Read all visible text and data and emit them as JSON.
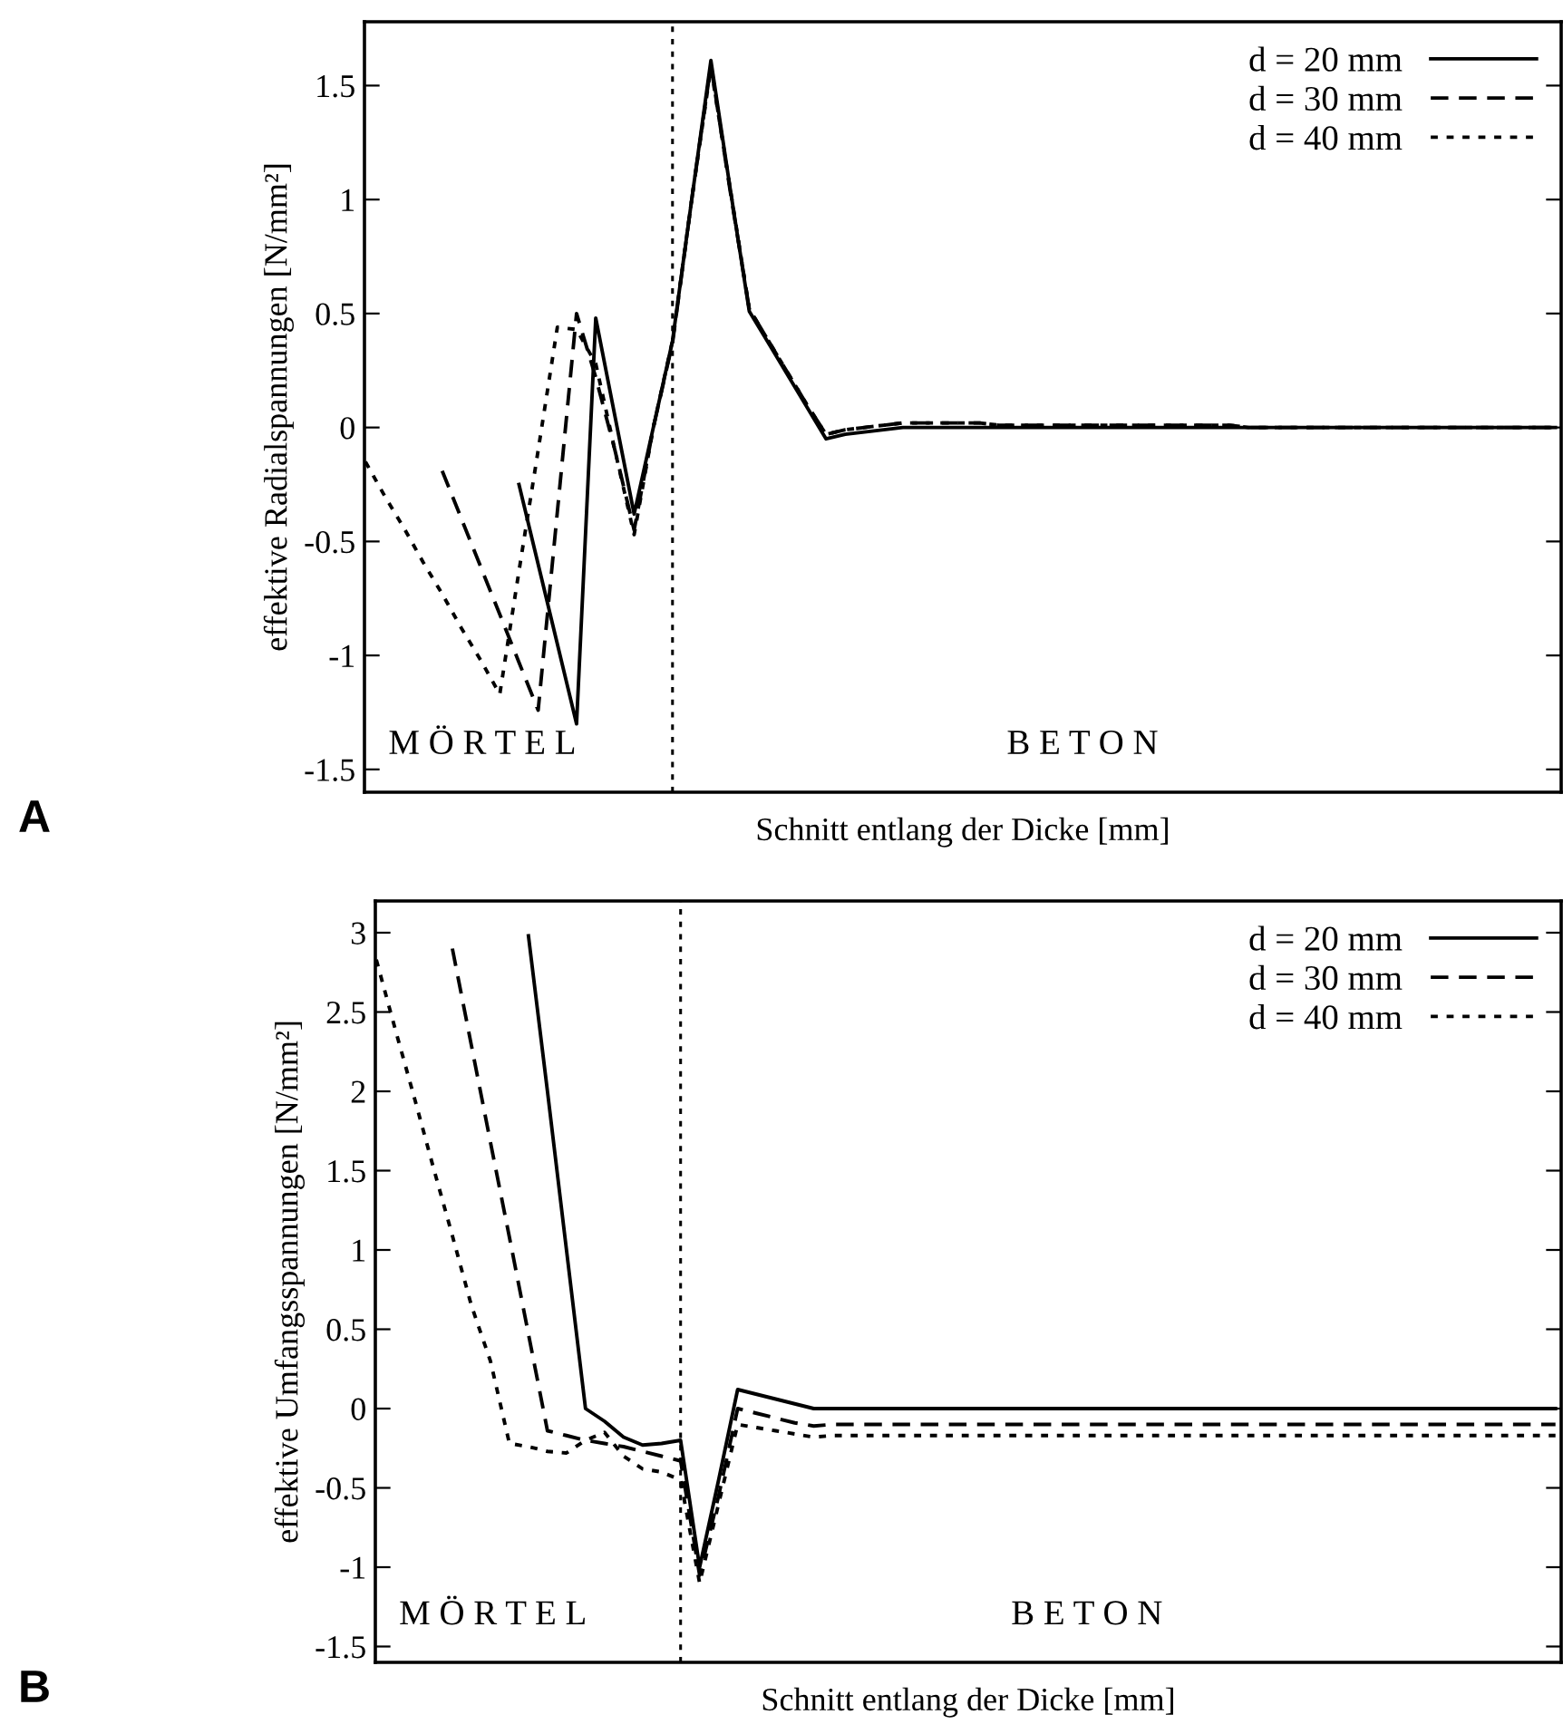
{
  "chart_data": [
    {
      "type": "line",
      "ylabel": "effektive Radialspannungen [N/mm²]",
      "xlabel": "Schnitt entlang der Dicke [mm]",
      "categories": [
        null,
        null,
        null,
        null,
        null,
        null,
        null,
        null,
        null,
        null,
        null,
        null,
        null,
        null,
        null,
        null,
        null,
        null,
        null,
        null,
        null,
        null,
        null,
        null,
        null,
        null,
        null,
        null,
        null,
        null,
        null,
        null,
        null,
        null,
        null,
        null,
        null,
        null,
        null,
        null,
        null,
        null,
        null,
        null,
        null,
        null,
        null,
        null,
        null,
        null,
        null,
        null,
        null,
        null,
        null,
        null,
        null,
        null,
        null,
        null,
        null,
        null,
        null
      ],
      "ylim": [
        -1.6,
        1.78
      ],
      "yticks": [
        -1.5,
        -1,
        -0.5,
        0,
        0.5,
        1,
        1.5
      ],
      "tick_labels": "y",
      "grid": false,
      "legend": "top right",
      "marker": "none",
      "series": [
        {
          "name": "d = 20 mm",
          "color": "#000000",
          "line_style": "solid",
          "values": [
            null,
            null,
            null,
            null,
            null,
            null,
            null,
            null,
            -0.25,
            -0.6,
            -0.95,
            -1.3,
            0.48,
            0.05,
            -0.38,
            0.0,
            0.38,
            1.0,
            1.61,
            1.05,
            0.51,
            0.37,
            0.23,
            0.09,
            -0.05,
            -0.03,
            -0.02,
            -0.01,
            0,
            0,
            0,
            0,
            0,
            0,
            0,
            0,
            0,
            0,
            0,
            0,
            0,
            0,
            0,
            0,
            0,
            0,
            0,
            0,
            0,
            0,
            0,
            0,
            0,
            0,
            0,
            0,
            0,
            0,
            0,
            0,
            0,
            0,
            0
          ]
        },
        {
          "name": "d = 30 mm",
          "color": "#000000",
          "line_style": "dashed",
          "values": [
            null,
            null,
            null,
            null,
            -0.19,
            -0.4,
            -0.61,
            -0.82,
            -1.03,
            -1.24,
            -0.37,
            0.5,
            0.22,
            -0.1,
            -0.45,
            0.0,
            0.37,
            1.0,
            1.59,
            1.04,
            0.52,
            0.38,
            0.24,
            0.1,
            -0.03,
            -0.01,
            0.0,
            0.01,
            0.02,
            0.02,
            0.02,
            0.02,
            0.02,
            0.01,
            0.01,
            0.01,
            0.01,
            0.01,
            0.01,
            0.01,
            0.01,
            0.01,
            0.01,
            0.01,
            0.01,
            0.01,
            0,
            0,
            0,
            0,
            0,
            0,
            0,
            0,
            0,
            0,
            0,
            0,
            0,
            0,
            0,
            0,
            0
          ]
        },
        {
          "name": "d = 40 mm",
          "color": "#000000",
          "line_style": "dotted",
          "values": [
            -0.15,
            -0.3,
            -0.44,
            -0.59,
            -0.73,
            -0.88,
            -1.02,
            -1.17,
            -0.63,
            -0.1,
            0.44,
            0.43,
            0.28,
            -0.1,
            -0.47,
            0.0,
            0.38,
            1.0,
            1.58,
            1.05,
            0.52,
            0.38,
            0.24,
            0.1,
            -0.03,
            -0.01,
            0.0,
            0.01,
            0.02,
            0.02,
            0.02,
            0.02,
            0.02,
            0.01,
            0.01,
            0.01,
            0.01,
            0.01,
            0.01,
            0.01,
            0.01,
            0.01,
            0.01,
            0.01,
            0.01,
            0.01,
            0,
            0,
            0,
            0,
            0,
            0,
            0,
            0,
            0,
            0,
            0,
            0,
            0,
            0,
            0,
            0,
            0
          ]
        }
      ],
      "annotations": [
        "M Ö R T E L",
        "B E T O N",
        "A"
      ]
    },
    {
      "type": "line",
      "ylabel": "effektive Umfangsspannungen [N/mm²]",
      "xlabel": "Schnitt entlang der Dicke [mm]",
      "categories": [
        null,
        null,
        null,
        null,
        null,
        null,
        null,
        null,
        null,
        null,
        null,
        null,
        null,
        null,
        null,
        null,
        null,
        null,
        null,
        null,
        null,
        null,
        null,
        null,
        null,
        null,
        null,
        null,
        null,
        null,
        null,
        null,
        null,
        null,
        null,
        null,
        null,
        null,
        null,
        null,
        null,
        null,
        null,
        null,
        null,
        null,
        null,
        null,
        null,
        null,
        null,
        null,
        null,
        null,
        null,
        null,
        null,
        null,
        null,
        null,
        null,
        null,
        null
      ],
      "ylim": [
        -1.6,
        3.2
      ],
      "yticks": [
        -1.5,
        -1,
        -0.5,
        0,
        0.5,
        1,
        1.5,
        2,
        2.5,
        3
      ],
      "tick_labels": "y",
      "grid": false,
      "legend": "top right",
      "marker": "none",
      "series": [
        {
          "name": "d = 20 mm",
          "color": "#000000",
          "line_style": "solid",
          "values": [
            null,
            null,
            null,
            null,
            null,
            null,
            null,
            null,
            2.98,
            2.0,
            1.0,
            0.0,
            -0.08,
            -0.18,
            -0.23,
            -0.22,
            -0.2,
            -1.0,
            -0.45,
            0.12,
            0.09,
            0.06,
            0.03,
            0.0,
            0,
            0,
            0,
            0,
            0,
            0,
            0,
            0,
            0,
            0,
            0,
            0,
            0,
            0,
            0,
            0,
            0,
            0,
            0,
            0,
            0,
            0,
            0,
            0,
            0,
            0,
            0,
            0,
            0,
            0,
            0,
            0,
            0,
            0,
            0,
            0,
            0,
            0,
            0
          ]
        },
        {
          "name": "d = 30 mm",
          "color": "#000000",
          "line_style": "dashed",
          "values": [
            null,
            null,
            null,
            null,
            2.9,
            2.29,
            1.68,
            1.08,
            0.47,
            -0.14,
            -0.17,
            -0.2,
            -0.22,
            -0.24,
            -0.27,
            -0.3,
            -0.33,
            -1.05,
            -0.55,
            0.0,
            -0.03,
            -0.06,
            -0.09,
            -0.11,
            -0.1,
            -0.1,
            -0.1,
            -0.1,
            -0.1,
            -0.1,
            -0.1,
            -0.1,
            -0.1,
            -0.1,
            -0.1,
            -0.1,
            -0.1,
            -0.1,
            -0.1,
            -0.1,
            -0.1,
            -0.1,
            -0.1,
            -0.1,
            -0.1,
            -0.1,
            -0.1,
            -0.1,
            -0.1,
            -0.1,
            -0.1,
            -0.1,
            -0.1,
            -0.1,
            -0.1,
            -0.1,
            -0.1,
            -0.1,
            -0.1,
            -0.1,
            -0.1,
            -0.1,
            -0.1
          ]
        },
        {
          "name": "d = 40 mm",
          "color": "#000000",
          "line_style": "dotted",
          "values": [
            2.83,
            2.39,
            1.96,
            1.52,
            1.09,
            0.65,
            0.3,
            -0.22,
            -0.24,
            -0.27,
            -0.28,
            -0.2,
            -0.15,
            -0.3,
            -0.38,
            -0.4,
            -0.45,
            -1.1,
            -0.6,
            -0.1,
            -0.12,
            -0.14,
            -0.16,
            -0.18,
            -0.17,
            -0.17,
            -0.17,
            -0.17,
            -0.17,
            -0.17,
            -0.17,
            -0.17,
            -0.17,
            -0.17,
            -0.17,
            -0.17,
            -0.17,
            -0.17,
            -0.17,
            -0.17,
            -0.17,
            -0.17,
            -0.17,
            -0.17,
            -0.17,
            -0.17,
            -0.17,
            -0.17,
            -0.17,
            -0.17,
            -0.17,
            -0.17,
            -0.17,
            -0.17,
            -0.17,
            -0.17,
            -0.17,
            -0.17,
            -0.17,
            -0.17,
            -0.17,
            -0.17,
            -0.17
          ]
        }
      ],
      "annotations": [
        "M Ö R T E L",
        "B E T O N",
        "B"
      ]
    }
  ]
}
